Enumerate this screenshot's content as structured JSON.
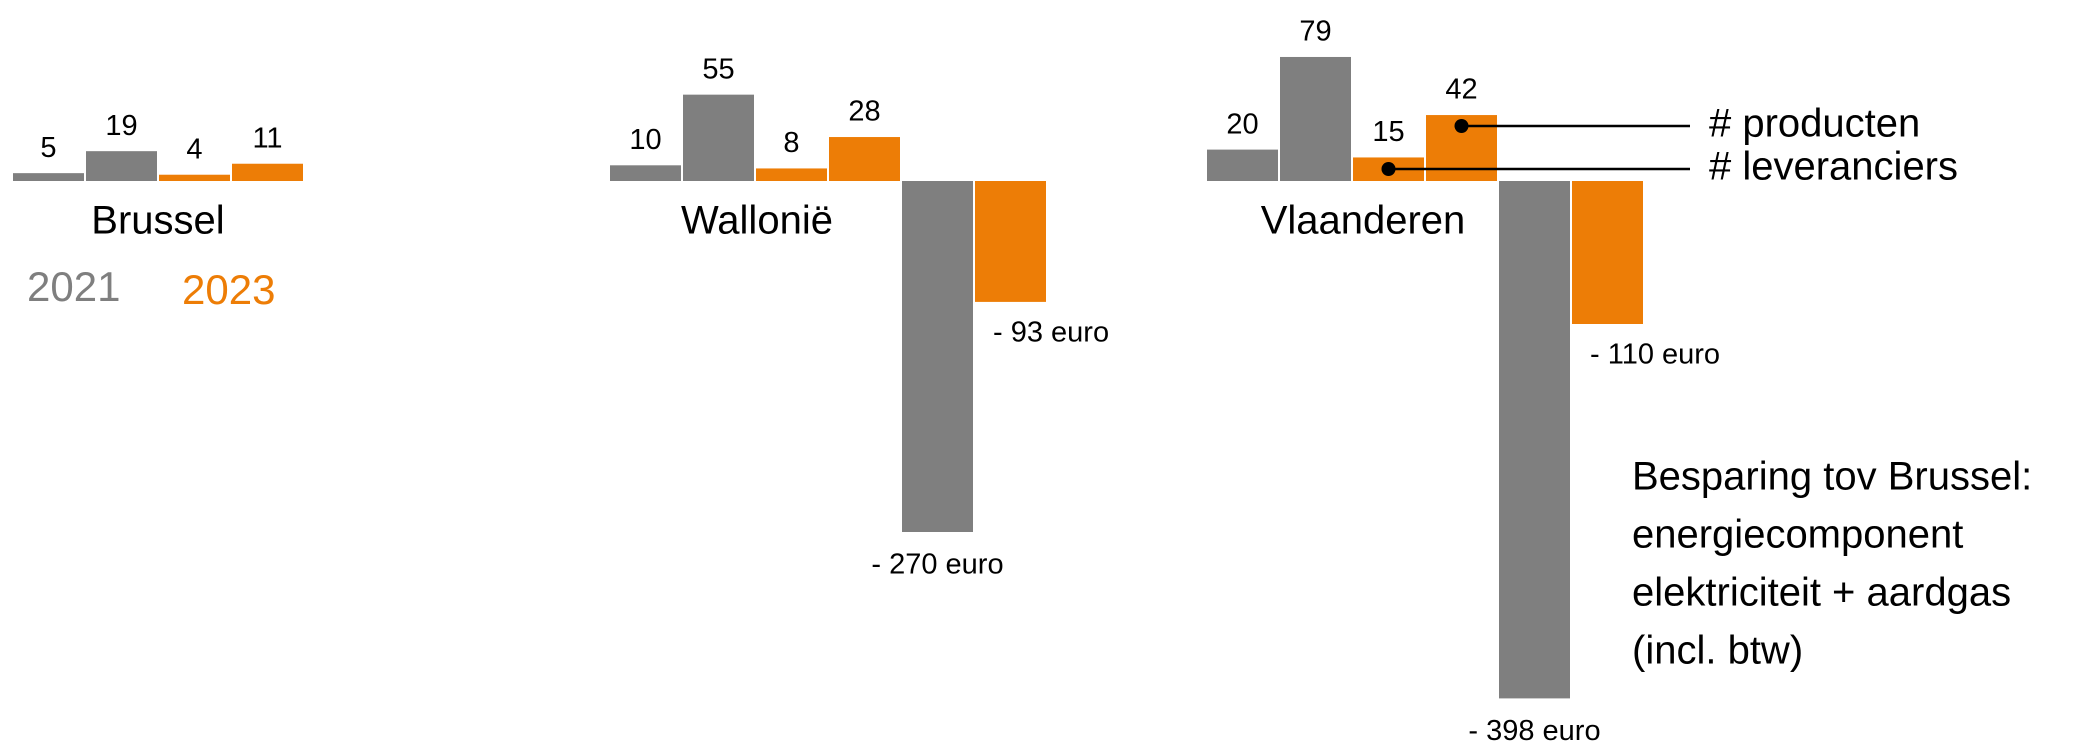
{
  "chart_data": {
    "type": "bar",
    "groups": [
      "Brussel",
      "Wallonië",
      "Vlaanderen"
    ],
    "series": [
      {
        "name": "2021",
        "color": "#7f7f7f",
        "leveranciers": [
          5,
          10,
          20
        ],
        "producten": [
          19,
          55,
          79
        ],
        "savings": [
          null,
          -270,
          -398
        ],
        "savings_labels": [
          null,
          "- 270 euro",
          "- 398 euro"
        ]
      },
      {
        "name": "2023",
        "color": "#ed7d06",
        "leveranciers": [
          4,
          8,
          15
        ],
        "producten": [
          11,
          28,
          42
        ],
        "savings": [
          null,
          -93,
          -110
        ],
        "savings_labels": [
          null,
          "- 93 euro",
          "- 110 euro"
        ]
      }
    ],
    "annotations": [
      "# producten",
      "# leveranciers"
    ],
    "note": [
      "Besparing tov Brussel:",
      "energiecomponent",
      "elektriciteit + aardgas",
      "(incl. btw)"
    ]
  }
}
